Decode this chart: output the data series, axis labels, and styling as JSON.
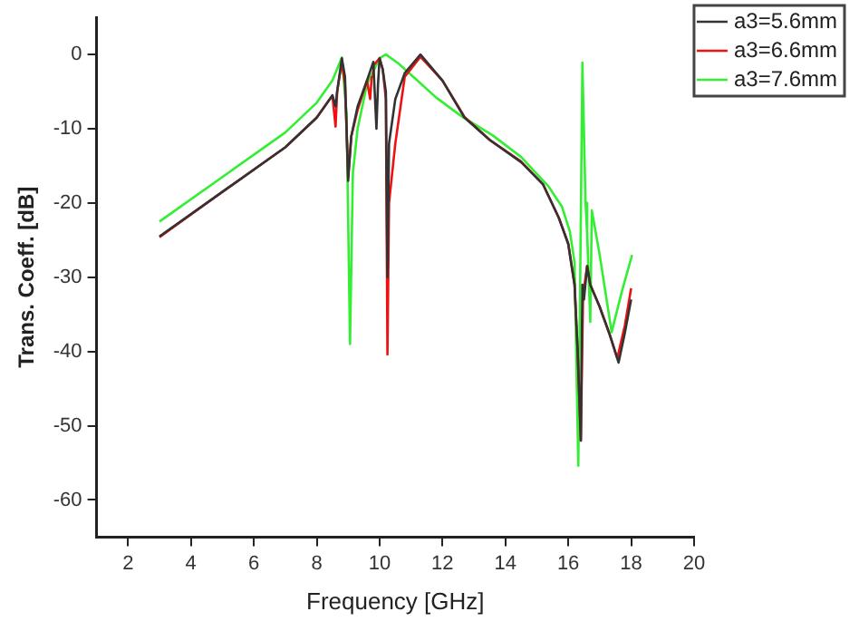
{
  "chart_data": {
    "type": "line",
    "xlabel": "Frequency [GHz]",
    "ylabel": "Trans. Coeff. [dB]",
    "xlim": [
      1,
      20
    ],
    "xticks": [
      2,
      4,
      6,
      8,
      10,
      12,
      14,
      16,
      18,
      20
    ],
    "ylim": [
      -65,
      5
    ],
    "yticks": [
      -60,
      -50,
      -40,
      -30,
      -20,
      -10,
      0
    ],
    "grid": false,
    "legend": "top right",
    "marker": "none",
    "line_style": "solid",
    "series": [
      {
        "name": "a3=5.6mm",
        "color": "#333333",
        "x": [
          3,
          5,
          7,
          8,
          8.5,
          8.6,
          8.65,
          8.8,
          8.9,
          9.0,
          9.1,
          9.3,
          9.6,
          9.8,
          9.9,
          9.95,
          10.0,
          10.1,
          10.2,
          10.25,
          10.3,
          10.5,
          10.8,
          11.3,
          12.0,
          12.7,
          13.5,
          14.5,
          15.2,
          15.7,
          16.0,
          16.2,
          16.3,
          16.4,
          16.45,
          16.5,
          16.6,
          16.7,
          17.0,
          17.3,
          17.6,
          17.8,
          18.0
        ],
        "values": [
          -24.5,
          -18.5,
          -12.5,
          -8.5,
          -5.5,
          -7,
          -5,
          -0.5,
          -3,
          -17,
          -11,
          -7,
          -3.5,
          -1,
          -10,
          -4,
          -0.5,
          -2,
          -5,
          -30,
          -12,
          -6,
          -2.5,
          0,
          -3.5,
          -8.5,
          -11.5,
          -14.5,
          -17.5,
          -22,
          -25.5,
          -31,
          -40,
          -52,
          -31,
          -33,
          -28.5,
          -31,
          -34,
          -37.5,
          -41.5,
          -37.5,
          -33
        ]
      },
      {
        "name": "a3=6.6mm",
        "color": "#ee1111",
        "x": [
          3,
          5,
          7,
          8,
          8.5,
          8.6,
          8.65,
          8.8,
          8.9,
          9.0,
          9.1,
          9.3,
          9.6,
          9.7,
          9.75,
          9.8,
          10.0,
          10.1,
          10.2,
          10.25,
          10.3,
          10.5,
          10.8,
          11.3,
          12.0,
          12.7,
          13.5,
          14.5,
          15.2,
          15.7,
          16.0,
          16.2,
          16.3,
          16.4,
          16.47,
          16.6,
          16.7,
          17.0,
          17.3,
          17.56,
          17.8,
          18.0
        ],
        "values": [
          -24.6,
          -18.5,
          -12.5,
          -8.5,
          -5.5,
          -9.7,
          -5,
          -1,
          -4,
          -16.5,
          -11,
          -7.5,
          -3.5,
          -6,
          -3,
          -1.5,
          -0.5,
          -2,
          -6,
          -40.4,
          -20,
          -12,
          -3,
          -0.3,
          -3.5,
          -8.4,
          -11.5,
          -14.4,
          -17.5,
          -22,
          -25.5,
          -31,
          -40,
          -52,
          -32.5,
          -28.5,
          -31,
          -34,
          -37.5,
          -40.9,
          -36.5,
          -31.5
        ]
      },
      {
        "name": "a3=7.6mm",
        "color": "#33ee33",
        "x": [
          3,
          5,
          7,
          8,
          8.5,
          8.8,
          8.95,
          9.06,
          9.15,
          9.3,
          9.6,
          10.0,
          10.2,
          10.6,
          11.2,
          11.8,
          12.6,
          13.6,
          14.5,
          15.36,
          15.8,
          16.05,
          16.2,
          16.32,
          16.45,
          16.55,
          16.6,
          16.7,
          16.75,
          17.0,
          17.38,
          17.7,
          18.03
        ],
        "values": [
          -22.5,
          -16.5,
          -10.5,
          -6.5,
          -3.5,
          -0.4,
          -8,
          -39,
          -16,
          -10,
          -4,
          -0.5,
          0,
          -1.2,
          -3.5,
          -5.8,
          -8.3,
          -10.9,
          -13.8,
          -17.7,
          -20.5,
          -23.8,
          -28,
          -55.4,
          -1.1,
          -20,
          -24,
          -36,
          -21,
          -27,
          -37.4,
          -32,
          -27
        ]
      }
    ]
  }
}
